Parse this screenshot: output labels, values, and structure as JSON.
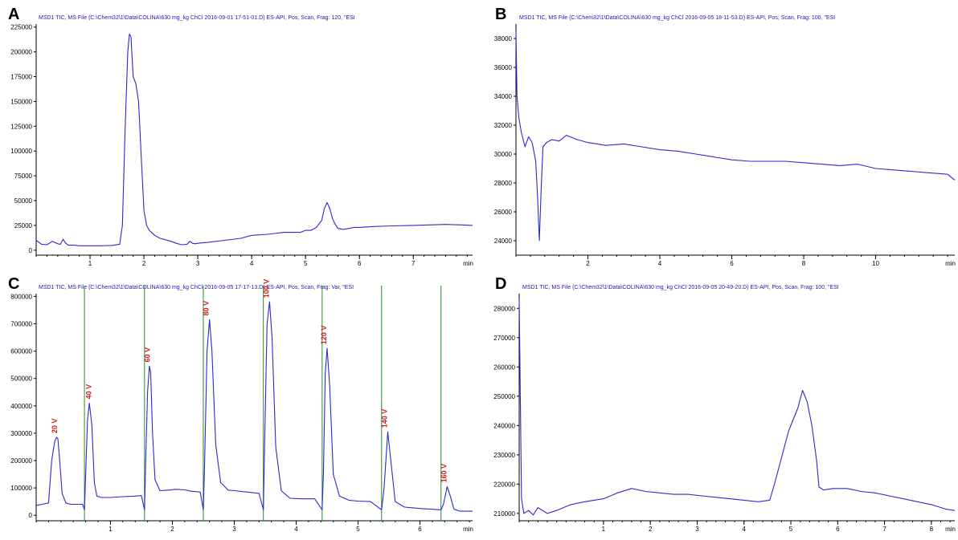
{
  "chart_data": [
    {
      "type": "line",
      "panel": "A",
      "header": "MSD1 TIC, MS File (C:\\Chem32\\1\\Data\\COLINA\\630 mg_kg ChCl 2016-09-01 17-51-01.D)   ES-API, Pos, Scan, Frag: 120, \"ESI",
      "xlabel": "min",
      "xlim": [
        0,
        8.1
      ],
      "ylim": [
        -5000,
        228000
      ],
      "xticks": [
        1,
        2,
        3,
        4,
        5,
        6,
        7
      ],
      "yticks": [
        0,
        25000,
        50000,
        75000,
        100000,
        125000,
        150000,
        175000,
        200000,
        225000
      ],
      "series": [
        {
          "x": [
            0.0,
            0.1,
            0.2,
            0.3,
            0.4,
            0.45,
            0.5,
            0.55,
            0.6,
            0.7,
            0.8,
            0.9,
            1.0,
            1.2,
            1.4,
            1.55,
            1.6,
            1.65,
            1.7,
            1.73,
            1.76,
            1.8,
            1.85,
            1.9,
            1.95,
            2.0,
            2.05,
            2.1,
            2.2,
            2.3,
            2.5,
            2.6,
            2.7,
            2.8,
            2.85,
            2.9,
            2.95,
            3.0,
            3.2,
            3.5,
            3.8,
            4.0,
            4.3,
            4.6,
            4.9,
            5.0,
            5.1,
            5.2,
            5.3,
            5.35,
            5.4,
            5.45,
            5.5,
            5.55,
            5.6,
            5.7,
            5.9,
            6.0,
            6.3,
            6.6,
            7.0,
            7.3,
            7.6,
            7.9,
            8.1
          ],
          "y": [
            10000,
            6000,
            5500,
            9000,
            6500,
            6000,
            11000,
            7000,
            5000,
            5000,
            4500,
            4500,
            4500,
            4500,
            4800,
            6000,
            25000,
            120000,
            200000,
            218000,
            215000,
            175000,
            168000,
            150000,
            95000,
            40000,
            25000,
            20000,
            15000,
            12000,
            9000,
            7000,
            5500,
            6000,
            9000,
            7000,
            6500,
            7000,
            8000,
            10000,
            12000,
            15000,
            16000,
            18000,
            18000,
            20000,
            20000,
            23000,
            30000,
            42000,
            48000,
            42000,
            32000,
            26000,
            22000,
            21000,
            23000,
            23000,
            24000,
            24500,
            25000,
            25500,
            26000,
            25500,
            25000
          ]
        }
      ]
    },
    {
      "type": "line",
      "panel": "B",
      "header": "MSD1 TIC, MS File (C:\\Chem32\\1\\Data\\COLINA\\630 mg_kg ChCl 2016-09-05 18-11-53.D)   ES-API, Pos, Scan, Frag: 100, \"ESI",
      "xlabel": "min",
      "xlim": [
        0,
        12.2
      ],
      "ylim": [
        23000,
        39000
      ],
      "xticks": [
        2,
        4,
        6,
        8,
        10
      ],
      "yticks": [
        24000,
        26000,
        28000,
        30000,
        32000,
        34000,
        36000,
        38000
      ],
      "series": [
        {
          "x": [
            0.0,
            0.03,
            0.08,
            0.15,
            0.25,
            0.35,
            0.45,
            0.55,
            0.6,
            0.65,
            0.7,
            0.75,
            0.85,
            1.0,
            1.2,
            1.4,
            1.7,
            2.0,
            2.5,
            3.0,
            3.5,
            4.0,
            4.5,
            5.0,
            5.5,
            6.0,
            6.5,
            7.0,
            7.5,
            8.0,
            8.5,
            9.0,
            9.5,
            10.0,
            10.5,
            11.0,
            11.5,
            12.0,
            12.2
          ],
          "y": [
            38500,
            34000,
            32500,
            31500,
            30500,
            31200,
            30800,
            29500,
            27000,
            24000,
            27500,
            30500,
            30800,
            31000,
            30900,
            31300,
            31000,
            30800,
            30600,
            30700,
            30500,
            30300,
            30200,
            30000,
            29800,
            29600,
            29500,
            29500,
            29500,
            29400,
            29300,
            29200,
            29300,
            29000,
            28900,
            28800,
            28700,
            28600,
            28200
          ]
        }
      ]
    },
    {
      "type": "line",
      "panel": "C",
      "header": "MSD1 TIC, MS File (C:\\Chem32\\1\\Data\\COLINA\\630 mg_kg ChCl 2016-09-05 17-17-13.D)   ES-API, Pos, Scan, Frag: Var, \"ESI",
      "xlabel": "min",
      "xlim": [
        -0.2,
        6.85
      ],
      "ylim": [
        -20000,
        810000
      ],
      "xticks": [
        1,
        2,
        3,
        4,
        5,
        6
      ],
      "yticks": [
        0,
        100000,
        200000,
        300000,
        400000,
        500000,
        600000,
        700000,
        800000
      ],
      "segment_starts": [
        0.58,
        1.55,
        2.5,
        3.47,
        4.42,
        5.38,
        6.34
      ],
      "peaks": [
        {
          "label": "20 V",
          "rt": 0.15,
          "height": 285000
        },
        {
          "label": "40 V",
          "rt": 0.7,
          "height": 410000
        },
        {
          "label": "60 V",
          "rt": 1.65,
          "height": 545000
        },
        {
          "label": "80 V",
          "rt": 2.6,
          "height": 715000
        },
        {
          "label": "100 V",
          "rt": 3.57,
          "height": 780000
        },
        {
          "label": "120 V",
          "rt": 4.5,
          "height": 610000
        },
        {
          "label": "140 V",
          "rt": 5.48,
          "height": 305000
        },
        {
          "label": "160 V",
          "rt": 6.44,
          "height": 105000
        }
      ],
      "series": [
        {
          "x": [
            -0.2,
            -0.15,
            -0.1,
            0.0,
            0.05,
            0.1,
            0.13,
            0.15,
            0.18,
            0.22,
            0.28,
            0.35,
            0.45,
            0.55,
            0.58,
            0.6,
            0.63,
            0.66,
            0.7,
            0.74,
            0.78,
            0.85,
            1.0,
            1.2,
            1.4,
            1.5,
            1.55,
            1.57,
            1.6,
            1.63,
            1.65,
            1.68,
            1.72,
            1.8,
            1.95,
            2.05,
            2.2,
            2.3,
            2.45,
            2.5,
            2.52,
            2.56,
            2.6,
            2.64,
            2.7,
            2.78,
            2.9,
            3.0,
            3.2,
            3.4,
            3.47,
            3.49,
            3.53,
            3.57,
            3.61,
            3.67,
            3.76,
            3.9,
            4.1,
            4.3,
            4.42,
            4.44,
            4.47,
            4.5,
            4.54,
            4.6,
            4.7,
            4.85,
            5.0,
            5.2,
            5.38,
            5.42,
            5.48,
            5.53,
            5.6,
            5.75,
            6.0,
            6.2,
            6.34,
            6.38,
            6.44,
            6.49,
            6.55,
            6.65,
            6.85
          ],
          "y": [
            35000,
            38000,
            40000,
            45000,
            200000,
            270000,
            285000,
            280000,
            200000,
            80000,
            45000,
            40000,
            40000,
            40000,
            20000,
            150000,
            350000,
            410000,
            330000,
            120000,
            70000,
            65000,
            65000,
            68000,
            70000,
            72000,
            20000,
            200000,
            450000,
            545000,
            520000,
            300000,
            130000,
            90000,
            92000,
            95000,
            93000,
            88000,
            85000,
            20000,
            180000,
            600000,
            715000,
            600000,
            260000,
            120000,
            92000,
            90000,
            85000,
            80000,
            20000,
            250000,
            700000,
            780000,
            650000,
            250000,
            90000,
            62000,
            60000,
            60000,
            20000,
            150000,
            520000,
            610000,
            480000,
            150000,
            70000,
            55000,
            52000,
            50000,
            20000,
            100000,
            305000,
            200000,
            50000,
            30000,
            25000,
            22000,
            20000,
            40000,
            105000,
            70000,
            22000,
            15000,
            15000
          ]
        }
      ]
    },
    {
      "type": "line",
      "panel": "D",
      "header": "MSD1 TIC, MS File (C:\\Chem32\\1\\Data\\COLINA\\630 mg_kg ChCl 2016-09-05 20-49-20.D)   ES-API, Pos, Scan, Frag: 100, \"ESI",
      "xlabel": "min",
      "xlim": [
        -0.8,
        8.5
      ],
      "ylim": [
        207500,
        285000
      ],
      "xticks": [
        1,
        2,
        3,
        4,
        5,
        6,
        7,
        8
      ],
      "yticks": [
        210000,
        220000,
        230000,
        240000,
        250000,
        260000,
        270000,
        280000
      ],
      "series": [
        {
          "x": [
            -0.8,
            -0.75,
            -0.7,
            -0.6,
            -0.5,
            -0.4,
            -0.2,
            0.0,
            0.3,
            0.6,
            1.0,
            1.3,
            1.6,
            1.9,
            2.2,
            2.5,
            2.8,
            3.1,
            3.4,
            3.7,
            4.0,
            4.3,
            4.55,
            4.65,
            4.75,
            4.85,
            4.95,
            5.05,
            5.15,
            5.25,
            5.35,
            5.45,
            5.55,
            5.6,
            5.7,
            5.9,
            6.2,
            6.5,
            6.8,
            7.1,
            7.4,
            7.7,
            8.0,
            8.3,
            8.5
          ],
          "y": [
            283000,
            215000,
            210000,
            211000,
            209500,
            212000,
            210000,
            211000,
            213000,
            214000,
            215000,
            217000,
            218500,
            217500,
            217000,
            216500,
            216500,
            216000,
            215500,
            215000,
            214500,
            214000,
            214500,
            220000,
            226000,
            232000,
            238000,
            242000,
            246000,
            252000,
            248000,
            240000,
            228000,
            219000,
            218000,
            218500,
            218500,
            217500,
            217000,
            216000,
            215000,
            214000,
            213000,
            211500,
            211000
          ]
        }
      ]
    }
  ]
}
